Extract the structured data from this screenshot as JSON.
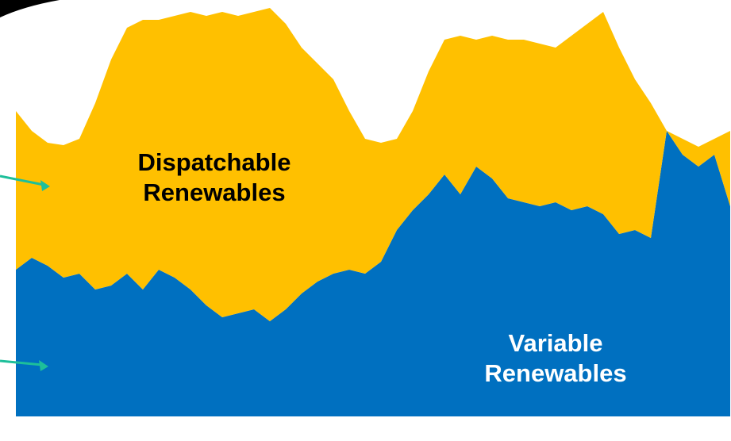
{
  "chart_data": {
    "type": "stacked-area",
    "series": [
      {
        "name": "Variable Renewables",
        "color": "#0070c0",
        "values": [
          185,
          200,
          190,
          175,
          180,
          160,
          165,
          180,
          160,
          185,
          175,
          160,
          140,
          125,
          130,
          135,
          120,
          135,
          155,
          170,
          180,
          185,
          180,
          195,
          235,
          260,
          280,
          305,
          280,
          315,
          300,
          275,
          270,
          265,
          270,
          260,
          265,
          255,
          230,
          235,
          225,
          360,
          330,
          315,
          330,
          265
        ]
      },
      {
        "name": "Dispatchable Renewables",
        "color": "#ffc000",
        "values": [
          200,
          160,
          155,
          167,
          170,
          235,
          285,
          310,
          340,
          315,
          330,
          350,
          365,
          385,
          375,
          375,
          395,
          360,
          310,
          275,
          245,
          200,
          170,
          150,
          115,
          125,
          155,
          170,
          200,
          160,
          180,
          200,
          205,
          205,
          195,
          220,
          230,
          255,
          235,
          190,
          170,
          0,
          20,
          25,
          20,
          95
        ]
      }
    ]
  }
}
